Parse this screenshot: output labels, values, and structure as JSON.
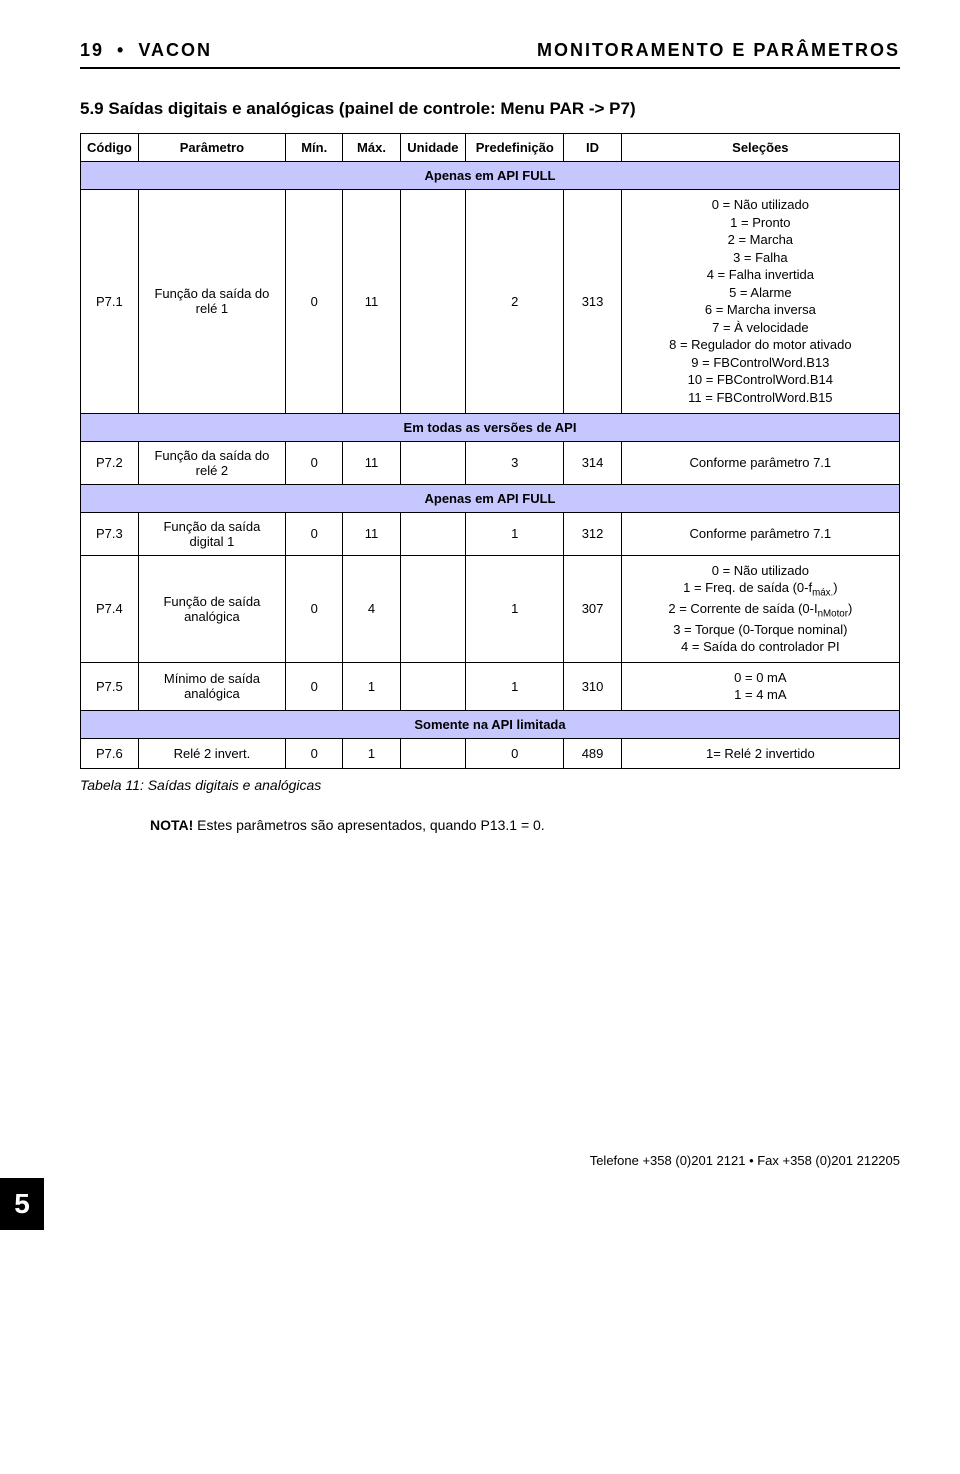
{
  "header": {
    "page_left_num": "19",
    "page_left_brand": "VACON",
    "page_right": "MONITORAMENTO E PARÂMETROS"
  },
  "section": {
    "title": "5.9 Saídas digitais e analógicas (painel de controle: Menu PAR -> P7)"
  },
  "table": {
    "columns": {
      "codigo": "Código",
      "parametro": "Parâmetro",
      "min": "Mín.",
      "max": "Máx.",
      "unidade": "Unidade",
      "predef": "Predefinição",
      "id": "ID",
      "selecoes": "Seleções"
    },
    "band1": "Apenas em API FULL",
    "row_p71": {
      "codigo": "P7.1",
      "param": "Função da saída do relé 1",
      "min": "0",
      "max": "11",
      "uni": "",
      "pred": "2",
      "id": "313",
      "sel": "0 = Não utilizado\n1 = Pronto\n2 = Marcha\n3 = Falha\n4 = Falha invertida\n5 = Alarme\n6 = Marcha inversa\n7 = À velocidade\n8 = Regulador do motor ativado\n9 = FBControlWord.B13\n10 = FBControlWord.B14\n11 = FBControlWord.B15"
    },
    "band2": "Em todas as versões de API",
    "row_p72": {
      "codigo": "P7.2",
      "param": "Função da saída do relé 2",
      "min": "0",
      "max": "11",
      "uni": "",
      "pred": "3",
      "id": "314",
      "sel": "Conforme parâmetro 7.1"
    },
    "band3": "Apenas em API FULL",
    "row_p73": {
      "codigo": "P7.3",
      "param": "Função da saída digital 1",
      "min": "0",
      "max": "11",
      "uni": "",
      "pred": "1",
      "id": "312",
      "sel": "Conforme parâmetro 7.1"
    },
    "row_p74": {
      "codigo": "P7.4",
      "param": "Função de saída analógica",
      "min": "0",
      "max": "4",
      "uni": "",
      "pred": "1",
      "id": "307",
      "sel_pre": "0 = Não utilizado\n1 = Freq. de saída (0-f",
      "sel_sub1": "máx.",
      "sel_mid": ")\n2 = Corrente de saída (0-I",
      "sel_sub2": "nMotor",
      "sel_post": ")\n3 = Torque (0-Torque nominal)\n4 = Saída do controlador PI"
    },
    "row_p75": {
      "codigo": "P7.5",
      "param": "Mínimo de saída analógica",
      "min": "0",
      "max": "1",
      "uni": "",
      "pred": "1",
      "id": "310",
      "sel": "0 = 0 mA\n1 = 4 mA"
    },
    "band4": "Somente na API limitada",
    "row_p76": {
      "codigo": "P7.6",
      "param": "Relé 2 invert.",
      "min": "0",
      "max": "1",
      "uni": "",
      "pred": "0",
      "id": "489",
      "sel": "1= Relé 2 invertido"
    }
  },
  "caption": "Tabela 11: Saídas digitais e analógicas",
  "note": {
    "label": "NOTA!",
    "text": " Estes parâmetros são apresentados, quando P13.1 = 0."
  },
  "footer": {
    "contact": "Telefone +358 (0)201 2121 • Fax +358 (0)201 212205",
    "page_number": "5"
  },
  "colors": {
    "band_bg": "#c7c7ff",
    "border": "#000000",
    "text": "#000000",
    "page_bg": "#ffffff"
  }
}
